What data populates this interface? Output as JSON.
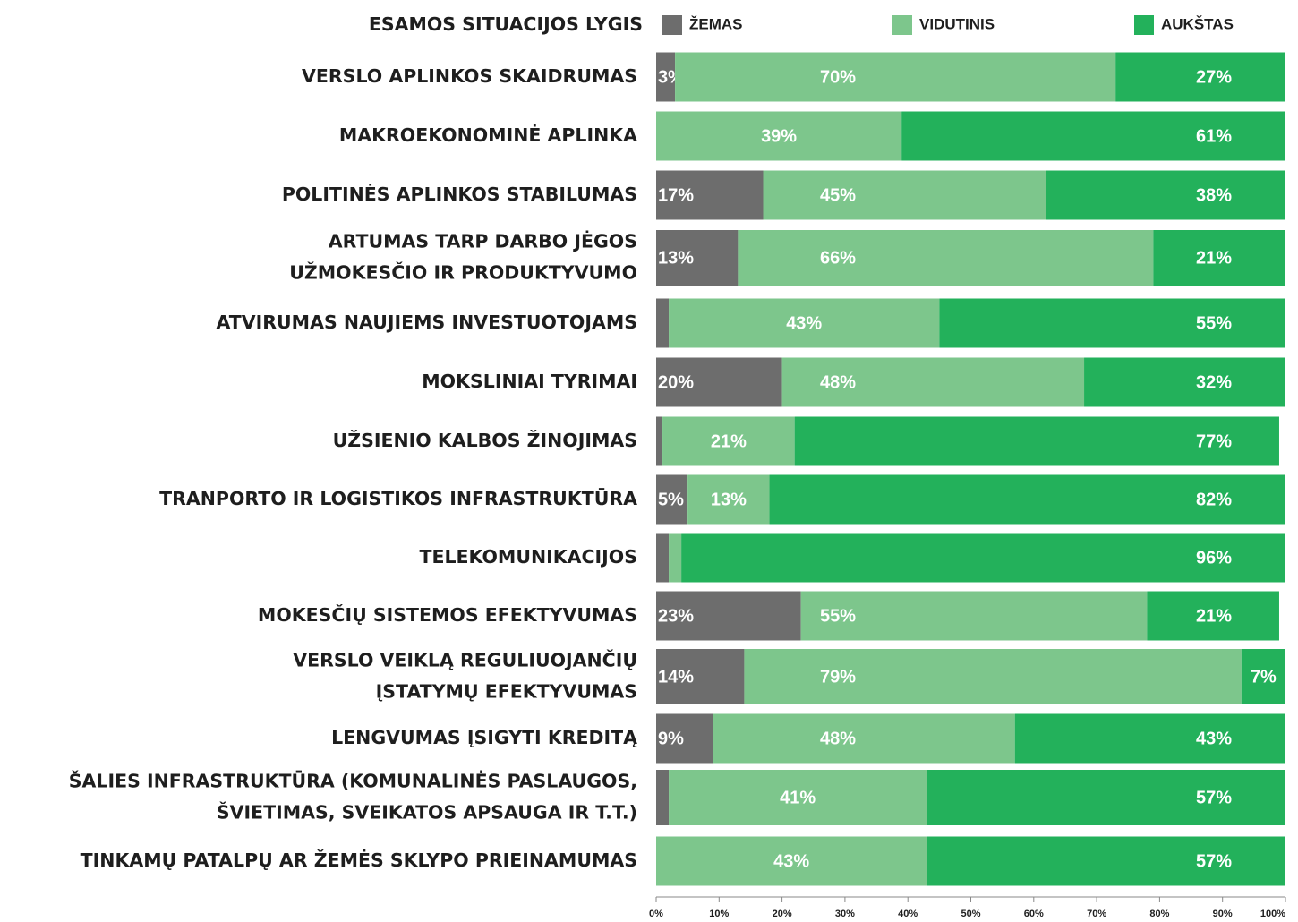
{
  "chart_data": {
    "type": "stacked_barh",
    "legend_title": "ESAMOS SITUACIJOS LYGIS",
    "categories": [
      "VERSLO APLINKOS SKAIDRUMAS",
      "MAKROEKONOMINĖ APLINKA",
      "POLITINĖS APLINKOS STABILUMAS",
      "ARTUMAS TARP DARBO JĖGOS\nUŽMOKESČIO IR PRODUKTYVUMO",
      "ATVIRUMAS NAUJIEMS INVESTUOTOJAMS",
      "MOKSLINIAI TYRIMAI",
      "UŽSIENIO KALBOS ŽINOJIMAS",
      "TRANPORTO IR LOGISTIKOS INFRASTRUKTŪRA",
      "TELEKOMUNIKACIJOS",
      "MOKESČIŲ SISTEMOS EFEKTYVUMAS",
      "VERSLO VEIKLĄ REGULIUOJANČIŲ\nĮSTATYMŲ EFEKTYVUMAS",
      "LENGVUMAS ĮSIGYTI KREDITĄ",
      "ŠALIES INFRASTRUKTŪRA (KOMUNALINĖS PASLAUGOS,\nŠVIETIMAS, SVEIKATOS APSAUGA IR T.T.)",
      "TINKAMŲ PATALPŲ AR ŽEMĖS SKLYPO PRIEINAMUMAS"
    ],
    "series": [
      {
        "name": "ŽEMAS",
        "color": "#6d6d6d",
        "values": [
          3,
          0,
          17,
          13,
          2,
          20,
          1,
          5,
          2,
          23,
          14,
          9,
          2,
          0
        ],
        "value_labels": [
          "3%",
          null,
          "17%",
          "13%",
          null,
          "20%",
          null,
          "5%",
          null,
          "23%",
          "14%",
          "9%",
          null,
          null
        ]
      },
      {
        "name": "VIDUTINIS",
        "color": "#7dc68c",
        "values": [
          70,
          39,
          45,
          66,
          43,
          48,
          21,
          13,
          2,
          55,
          79,
          48,
          41,
          43
        ],
        "value_labels": [
          "70%",
          "39%",
          "45%",
          "66%",
          "43%",
          "48%",
          "21%",
          "13%",
          null,
          "55%",
          "79%",
          "48%",
          "41%",
          "43%"
        ]
      },
      {
        "name": "AUKŠTAS",
        "color": "#23b15b",
        "values": [
          27,
          61,
          38,
          21,
          55,
          32,
          77,
          82,
          96,
          21,
          7,
          43,
          57,
          57
        ],
        "value_labels": [
          "27%",
          "61%",
          "38%",
          "21%",
          "55%",
          "32%",
          "77%",
          "82%",
          "96%",
          "21%",
          "7%",
          "43%",
          "57%",
          "57%"
        ]
      }
    ],
    "xlim": [
      0,
      100
    ],
    "xticks": [
      {
        "value": 0,
        "label": "0%"
      },
      {
        "value": 10,
        "label": "10%"
      },
      {
        "value": 20,
        "label": "20%"
      },
      {
        "value": 30,
        "label": "30%"
      },
      {
        "value": 40,
        "label": "40%"
      },
      {
        "value": 50,
        "label": "50%"
      },
      {
        "value": 60,
        "label": "60%"
      },
      {
        "value": 70,
        "label": "70%"
      },
      {
        "value": 80,
        "label": "80%"
      },
      {
        "value": 90,
        "label": "90%"
      },
      {
        "value": 100,
        "label": "100%"
      }
    ]
  }
}
